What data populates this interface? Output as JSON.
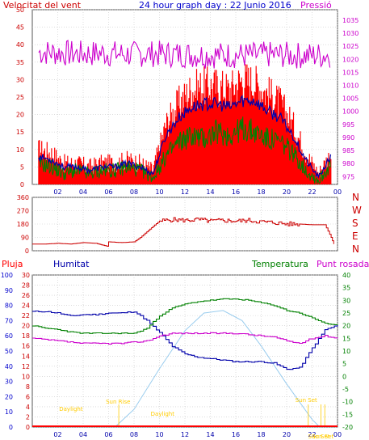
{
  "chart_data": [
    {
      "type": "line",
      "title": "24 hour graph day : 22 Junio 2016",
      "left_axis_label": "Velocitat del vent",
      "right_axis_label": "Pressió",
      "colors": {
        "title": "#0000cc",
        "wind_label": "#cc0000",
        "pressure_label": "#cc00cc",
        "gust": "#ff0000",
        "avg": "#0000aa",
        "speed": "#008000",
        "pressure": "#cc00cc"
      },
      "grid": true,
      "x_ticks": [
        "02",
        "04",
        "06",
        "08",
        "10",
        "12",
        "14",
        "16",
        "18",
        "20",
        "22",
        "00"
      ],
      "ylim_left": [
        0,
        50
      ],
      "y_ticks_left": [
        "0",
        "5",
        "10",
        "15",
        "20",
        "25",
        "30",
        "35",
        "40",
        "45",
        "50"
      ],
      "ylim_right": [
        972,
        1039
      ],
      "y_ticks_right": [
        "975",
        "980",
        "985",
        "990",
        "995",
        "1000",
        "1005",
        "1010",
        "1015",
        "1020",
        "1025",
        "1030",
        "1035"
      ],
      "x": [
        0.5,
        1.5,
        2.5,
        3.5,
        4.5,
        5.5,
        6.5,
        7.5,
        8.5,
        9.5,
        10.5,
        11.5,
        12.5,
        13.5,
        14.5,
        15.5,
        16.5,
        17.5,
        18.5,
        19.5,
        20.5,
        21.5,
        22.5,
        23.5
      ],
      "series": [
        {
          "key": "gust",
          "values": [
            10,
            9,
            6,
            6,
            5,
            6,
            6,
            7,
            6,
            4,
            17,
            23,
            27,
            28,
            28,
            27,
            30,
            29,
            26,
            23,
            17,
            9,
            3,
            9
          ]
        },
        {
          "key": "avg",
          "values": [
            8,
            7,
            5,
            5,
            4,
            5,
            5,
            6,
            5,
            3,
            14,
            19,
            22,
            23,
            23,
            22,
            24,
            24,
            21,
            19,
            14,
            7,
            2,
            8
          ]
        },
        {
          "key": "speed",
          "values": [
            6,
            5,
            3,
            4,
            3,
            4,
            4,
            5,
            4,
            2,
            8,
            12,
            14,
            13,
            15,
            14,
            16,
            15,
            13,
            12,
            9,
            4,
            1,
            6
          ]
        },
        {
          "key": "pressure",
          "values": [
            1022.7,
            1022.6,
            1022.4,
            1022.1,
            1022.1,
            1022.3,
            1022.1,
            1021.9,
            1022.0,
            1022.1,
            1022.0,
            1021.9,
            1021.7,
            1021.6,
            1021.6,
            1021.6,
            1021.5,
            1021.5,
            1021.7,
            1021.7,
            1021.5,
            1021.4,
            1021.5,
            1021.7
          ]
        }
      ]
    },
    {
      "type": "line",
      "direction_labels": [
        "N",
        "W",
        "S",
        "E",
        "N"
      ],
      "colors": {
        "line": "#cc0000",
        "labels": "#cc0000"
      },
      "grid": true,
      "x_ticks": [
        "02",
        "04",
        "06",
        "08",
        "10",
        "12",
        "14",
        "16",
        "18",
        "20",
        "22",
        "00"
      ],
      "ylim": [
        0,
        360
      ],
      "y_ticks": [
        "0",
        "90",
        "180",
        "270",
        "360"
      ],
      "x": [
        0.0,
        1.0,
        2.0,
        3.0,
        4.0,
        5.0,
        5.9,
        6.0,
        7.0,
        8.0,
        8.5,
        9.5,
        10.0,
        11.0,
        12.0,
        13.0,
        14.0,
        15.0,
        16.0,
        17.0,
        18.0,
        19.0,
        20.0,
        21.0,
        22.0,
        23.0,
        23.5,
        23.7
      ],
      "values": [
        45,
        45,
        50,
        45,
        55,
        50,
        30,
        60,
        55,
        60,
        90,
        165,
        200,
        210,
        205,
        210,
        200,
        205,
        200,
        205,
        195,
        190,
        180,
        180,
        175,
        175,
        90,
        45
      ]
    },
    {
      "type": "line",
      "labels": {
        "rain": "Pluja",
        "humidity": "Humitat",
        "temperature": "Temperatura",
        "dewpoint": "Punt rosada"
      },
      "colors": {
        "rain": "#ff0000",
        "humidity": "#0000aa",
        "temperature": "#008000",
        "dewpoint": "#cc00cc",
        "solar": "#99ccee",
        "events": "#ffcc00"
      },
      "grid": true,
      "x_ticks": [
        "02",
        "04",
        "06",
        "08",
        "10",
        "12",
        "14",
        "16",
        "18",
        "20",
        "22",
        "00"
      ],
      "y_ticks_rain": [
        "0",
        "10",
        "20",
        "30",
        "40",
        "50",
        "60",
        "70",
        "80",
        "90",
        "100"
      ],
      "y_ticks_humidity": [
        "0",
        "2",
        "4",
        "6",
        "8",
        "10",
        "12",
        "14",
        "16",
        "18",
        "20",
        "22",
        "24",
        "26",
        "28",
        "30"
      ],
      "y_ticks_temp": [
        "-20",
        "-15",
        "-10",
        "-5",
        "0",
        "5",
        "10",
        "15",
        "20",
        "25",
        "30",
        "35",
        "40"
      ],
      "ylim_temp": [
        -20,
        40
      ],
      "ylim_rain": [
        0,
        100
      ],
      "x": [
        0.0,
        1.0,
        2.0,
        3.0,
        4.0,
        5.0,
        6.0,
        7.0,
        8.0,
        9.0,
        10.0,
        11.0,
        12.0,
        13.0,
        14.0,
        15.0,
        16.0,
        17.0,
        18.0,
        19.0,
        20.0,
        21.0,
        22.0,
        23.0,
        24.0
      ],
      "series": [
        {
          "key": "humidity",
          "values": [
            76,
            76,
            75,
            73,
            74,
            74,
            75,
            75,
            76,
            70,
            62,
            53,
            48,
            46,
            45,
            44,
            43,
            43,
            43,
            42,
            38,
            39,
            52,
            64,
            67
          ]
        },
        {
          "key": "temperature",
          "values": [
            20,
            19,
            18.5,
            17.5,
            17,
            17,
            17,
            17,
            17,
            19,
            24,
            27,
            28.5,
            29.5,
            30,
            30.5,
            30.5,
            30,
            29,
            28,
            26,
            25,
            23,
            21,
            20
          ]
        },
        {
          "key": "dewpoint",
          "values": [
            15,
            14.5,
            14,
            13.5,
            13,
            13,
            13,
            13,
            13.5,
            14,
            16,
            17,
            17,
            17,
            17,
            17,
            17,
            16.5,
            16,
            15.5,
            14,
            13,
            15,
            16,
            15
          ]
        },
        {
          "key": "rain",
          "values": [
            0,
            0,
            0,
            0,
            0,
            0,
            0,
            0,
            0,
            0,
            0,
            0,
            0,
            0,
            0,
            0,
            0,
            0,
            0,
            0,
            0,
            0,
            0,
            0,
            0
          ]
        },
        {
          "key": "solar",
          "x": [
            6.5,
            8.0,
            10.0,
            12.0,
            13.5,
            15.0,
            16.5,
            18.0,
            20.0,
            22.0,
            22.6
          ],
          "values": [
            -20,
            -13,
            3,
            18,
            25,
            26,
            22,
            12,
            -3,
            -17,
            -20
          ]
        }
      ],
      "events": [
        {
          "label": "Sun Rise",
          "time": 6.8
        },
        {
          "label": "Sun Set",
          "time": 21.7
        },
        {
          "label": "Sun Set",
          "time": 23.0
        },
        {
          "label": "Sun Set",
          "time": 22.7
        }
      ],
      "annotations": [
        {
          "label": "Daylight",
          "time": 3.0
        },
        {
          "label": "Daylight",
          "time": 10.2
        }
      ]
    }
  ],
  "ui": {
    "footer_note": ""
  }
}
